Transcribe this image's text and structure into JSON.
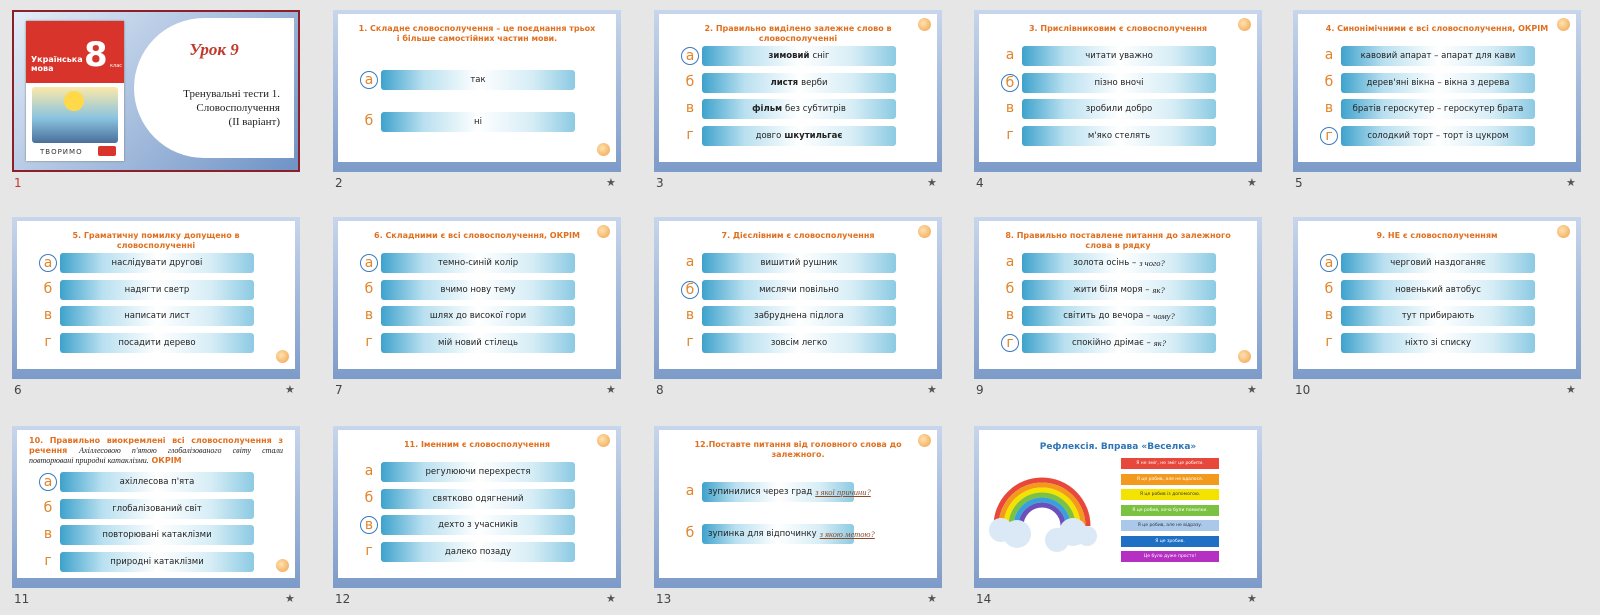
{
  "slides": [
    {
      "number": "1",
      "title": "Урок 9",
      "subtitle_lines": [
        "Тренувальні тести 1.",
        "Словосполучення",
        "(ІІ варіант)"
      ],
      "cover": {
        "subject": "Українська мова",
        "grade": "8",
        "grade_label": "клас",
        "series": "ТВОРИМО"
      }
    },
    {
      "number": "2",
      "question": "1. Складне словосполучення – це поєднання трьох і більше самостійних частин мови.",
      "circled": 0,
      "options": [
        {
          "letter": "а",
          "text": "так"
        },
        {
          "letter": "б",
          "text": "ні"
        }
      ]
    },
    {
      "number": "3",
      "question": "2. Правильно виділено залежне  слово в словосполученні",
      "circled": 0,
      "options": [
        {
          "letter": "а",
          "parts": [
            {
              "text": "зимовий",
              "bold": true
            },
            {
              "text": "сніг"
            }
          ]
        },
        {
          "letter": "б",
          "parts": [
            {
              "text": "листя",
              "bold": true
            },
            {
              "text": "верби"
            }
          ]
        },
        {
          "letter": "в",
          "parts": [
            {
              "text": "фільм",
              "bold": true
            },
            {
              "text": "без субтитрів"
            }
          ]
        },
        {
          "letter": "г",
          "parts": [
            {
              "text": "довго"
            },
            {
              "text": "шкутильгає",
              "bold": true
            }
          ]
        }
      ]
    },
    {
      "number": "4",
      "question": "3. Прислівниковим є словосполучення",
      "circled": 1,
      "options": [
        {
          "letter": "а",
          "text": "читати уважно"
        },
        {
          "letter": "б",
          "text": "пізно вночі"
        },
        {
          "letter": "в",
          "text": "зробили добро"
        },
        {
          "letter": "г",
          "text": "м'яко стелять"
        }
      ]
    },
    {
      "number": "5",
      "question": "4. Синонімічними є всі словосполучення, ОКРІМ",
      "circled": 3,
      "options": [
        {
          "letter": "а",
          "text": "кавовий апарат – апарат для кави"
        },
        {
          "letter": "б",
          "text": "дерев'яні вікна – вікна з дерева"
        },
        {
          "letter": "в",
          "text": "братів героскутер – героскутер брата"
        },
        {
          "letter": "г",
          "text": "солодкий торт – торт із цукром"
        }
      ]
    },
    {
      "number": "6",
      "question": "5. Граматичну помилку допущено в словосполученні",
      "circled": 0,
      "options": [
        {
          "letter": "а",
          "text": "наслідувати другові"
        },
        {
          "letter": "б",
          "text": "надягти светр"
        },
        {
          "letter": "в",
          "text": "написати лист"
        },
        {
          "letter": "г",
          "text": "посадити дерево"
        }
      ]
    },
    {
      "number": "7",
      "question": "6. Складними є всі словосполучення, ОКРІМ",
      "circled": 0,
      "options": [
        {
          "letter": "а",
          "text": "темно-синій колір"
        },
        {
          "letter": "б",
          "text": "вчимо нову тему"
        },
        {
          "letter": "в",
          "text": "шлях до високої гори"
        },
        {
          "letter": "г",
          "text": "мій новий стілець"
        }
      ]
    },
    {
      "number": "8",
      "question": "7. Дієслівним є словосполучення",
      "circled": 1,
      "options": [
        {
          "letter": "а",
          "text": "вишитий рушник"
        },
        {
          "letter": "б",
          "text": "мислячи повільно"
        },
        {
          "letter": "в",
          "text": "забруднена підлога"
        },
        {
          "letter": "г",
          "text": "зовсім легко"
        }
      ]
    },
    {
      "number": "9",
      "question": "8. Правильно поставлене питання до залежного слова в рядку",
      "circled": 3,
      "options": [
        {
          "letter": "а",
          "text": "золота осінь –",
          "hint": "з чого?"
        },
        {
          "letter": "б",
          "text": "жити біля моря –",
          "hint": "як?"
        },
        {
          "letter": "в",
          "text": "світить до вечора –",
          "hint": "чому?"
        },
        {
          "letter": "г",
          "text": "спокійно дрімає –",
          "hint": "як?"
        }
      ]
    },
    {
      "number": "10",
      "question": "9. НЕ є словосполученням",
      "circled": 0,
      "options": [
        {
          "letter": "а",
          "text": "черговий наздоганяє"
        },
        {
          "letter": "б",
          "text": "новенький автобус"
        },
        {
          "letter": "в",
          "text": "тут прибирають"
        },
        {
          "letter": "г",
          "text": "ніхто зі списку"
        }
      ]
    },
    {
      "number": "11",
      "question": "10. Правильно виокремлені всі словосполучення з речення",
      "sentence": "Ахіллесовою п'ятою глобалізованого світу стали повторювані природні катаклізми.",
      "emphasis": "ОКРІМ",
      "circled": 0,
      "options": [
        {
          "letter": "а",
          "text": "ахіллесова п'ята"
        },
        {
          "letter": "б",
          "text": "глобалізований світ"
        },
        {
          "letter": "в",
          "text": "повторювані катаклізми"
        },
        {
          "letter": "г",
          "text": "природні катаклізми"
        }
      ]
    },
    {
      "number": "12",
      "question": "11. Іменним є  словосполучення",
      "circled": 2,
      "options": [
        {
          "letter": "а",
          "text": "регулюючи перехрестя"
        },
        {
          "letter": "б",
          "text": "святково одягнений"
        },
        {
          "letter": "в",
          "text": "дехто з учасників"
        },
        {
          "letter": "г",
          "text": "далеко позаду"
        }
      ]
    },
    {
      "number": "13",
      "question": "12.Поставте питання від головного слова до залежного.",
      "answer_blank": true,
      "options": [
        {
          "letter": "а",
          "text": "зупинилися через град",
          "hint": "з якої причини?"
        },
        {
          "letter": "б",
          "text": "зупинка для відпочинку",
          "hint": "з якою метою?"
        }
      ]
    },
    {
      "number": "14",
      "title": "Рефлексія. Вправа «Веселка»",
      "stripes": [
        {
          "color": "#e8483b",
          "text": "Я не зміг, не зміг це робити."
        },
        {
          "color": "#f39a1e",
          "text": "Я це робив, але не вдалося."
        },
        {
          "color": "#f4e200",
          "text": "Я це робив із допомогою."
        },
        {
          "color": "#7cc242",
          "text": "Я це робив, хоча були помилки."
        },
        {
          "color": "#a9c8ea",
          "text": "Я це робив, але не відразу."
        },
        {
          "color": "#1f6fc5",
          "text": "Я це зробив."
        },
        {
          "color": "#b52fc2",
          "text": "Це було дуже просто!"
        }
      ]
    }
  ]
}
